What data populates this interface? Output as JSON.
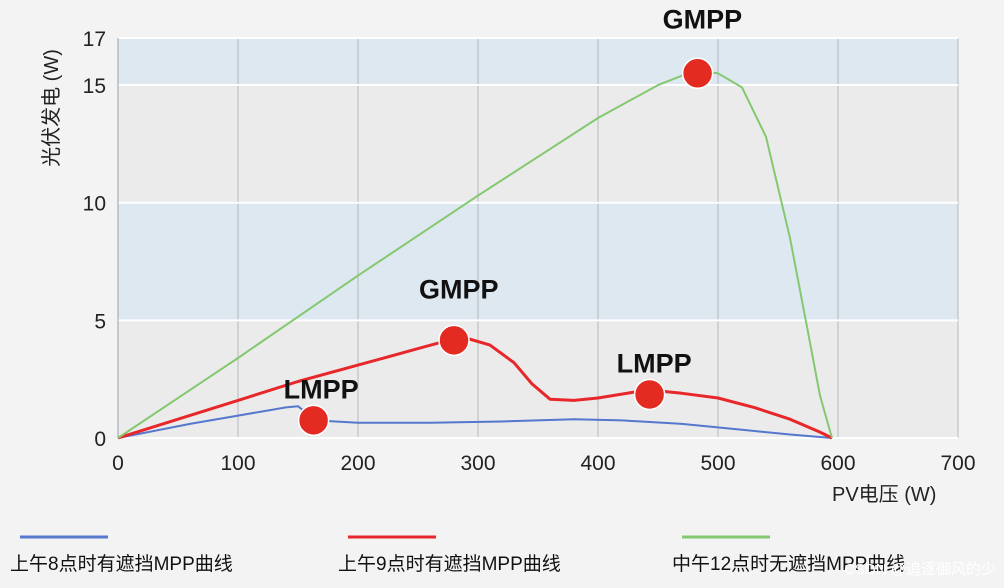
{
  "chart_data": {
    "type": "line",
    "xlabel": "PV电压 (W)",
    "ylabel": "光伏发电 (W)",
    "xlim": [
      0,
      700
    ],
    "ylim": [
      0,
      17
    ],
    "x_ticks": [
      0,
      100,
      200,
      300,
      400,
      500,
      600,
      700
    ],
    "y_ticks": [
      0,
      5,
      10,
      15,
      17
    ],
    "grid": true,
    "legend_position": "bottom",
    "series": [
      {
        "name": "上午8点时有遮挡MPP曲线",
        "color": "#5577cc",
        "x": [
          0,
          60,
          100,
          140,
          150,
          165,
          200,
          260,
          320,
          380,
          420,
          470,
          520,
          560,
          595
        ],
        "y": [
          0,
          0.6,
          0.95,
          1.3,
          1.35,
          0.75,
          0.65,
          0.65,
          0.7,
          0.8,
          0.75,
          0.6,
          0.35,
          0.15,
          0
        ]
      },
      {
        "name": "上午9点时有遮挡MPP曲线",
        "color": "#e8272a",
        "x": [
          0,
          50,
          100,
          150,
          200,
          250,
          275,
          290,
          310,
          330,
          345,
          360,
          380,
          400,
          430,
          450,
          470,
          500,
          530,
          560,
          585,
          595
        ],
        "y": [
          0,
          0.8,
          1.6,
          2.4,
          3.1,
          3.8,
          4.15,
          4.25,
          3.95,
          3.2,
          2.3,
          1.65,
          1.6,
          1.7,
          1.95,
          2.0,
          1.9,
          1.7,
          1.3,
          0.8,
          0.25,
          0
        ]
      },
      {
        "name": "中午12点时无遮挡MPP曲线",
        "color": "#84c870",
        "x": [
          0,
          100,
          200,
          300,
          400,
          450,
          480,
          500,
          520,
          540,
          560,
          575,
          585,
          595
        ],
        "y": [
          0,
          3.4,
          6.9,
          10.3,
          13.6,
          15.0,
          15.6,
          15.5,
          14.9,
          12.8,
          8.5,
          4.5,
          1.8,
          0
        ]
      }
    ],
    "points": [
      {
        "series": 1,
        "x": 163,
        "y": 0.75,
        "label": "LMPP"
      },
      {
        "series": 1,
        "x": 280,
        "y": 4.15,
        "label": "GMPP"
      },
      {
        "series": 1,
        "x": 443,
        "y": 1.85,
        "label": "LMPP"
      },
      {
        "series": 2,
        "x": 483,
        "y": 15.5,
        "label": "GMPP"
      }
    ],
    "marker_color": "#e32b22"
  },
  "watermark": "CSDN @追逐御风的少"
}
